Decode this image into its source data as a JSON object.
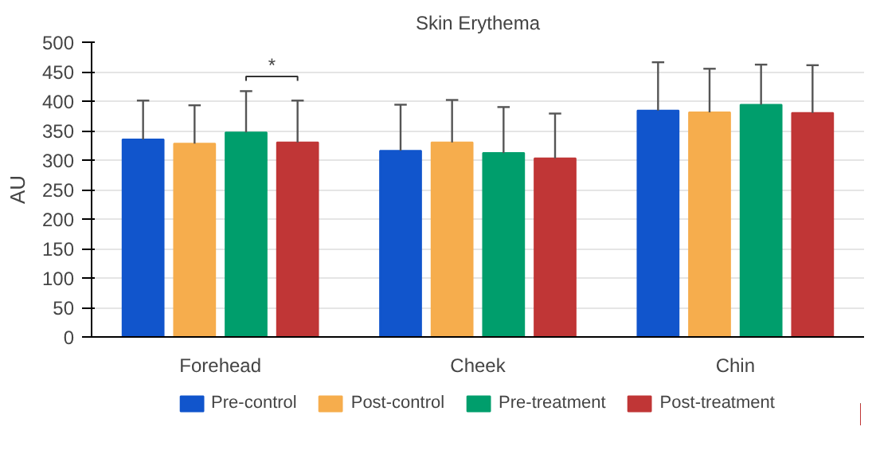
{
  "chart_data": {
    "type": "bar",
    "title": "Skin Erythema",
    "ylabel": "AU",
    "categories": [
      "Forehead",
      "Cheek",
      "Chin"
    ],
    "series": [
      {
        "name": "Pre-control",
        "color": "#1155cc",
        "values": [
          335,
          316,
          384
        ],
        "errors": [
          [
            335,
            401
          ],
          [
            316,
            394
          ],
          [
            384,
            466
          ]
        ]
      },
      {
        "name": "Post-control",
        "color": "#f6ad4d",
        "values": [
          328,
          330,
          381
        ],
        "errors": [
          [
            328,
            393
          ],
          [
            330,
            402
          ],
          [
            381,
            455
          ]
        ]
      },
      {
        "name": "Pre-treatment",
        "color": "#009e6c",
        "values": [
          347,
          312,
          394
        ],
        "errors": [
          [
            347,
            417
          ],
          [
            312,
            390
          ],
          [
            394,
            462
          ]
        ]
      },
      {
        "name": "Post-treatment",
        "color": "#c03636",
        "values": [
          330,
          303,
          380
        ],
        "errors": [
          [
            330,
            401
          ],
          [
            303,
            379
          ],
          [
            380,
            461
          ]
        ]
      }
    ],
    "ylim": [
      0,
      500
    ],
    "yticks": [
      0,
      50,
      100,
      150,
      200,
      250,
      300,
      350,
      400,
      450,
      500
    ],
    "grid": "y",
    "legend": "bottom",
    "annotations": [
      "*"
    ]
  }
}
